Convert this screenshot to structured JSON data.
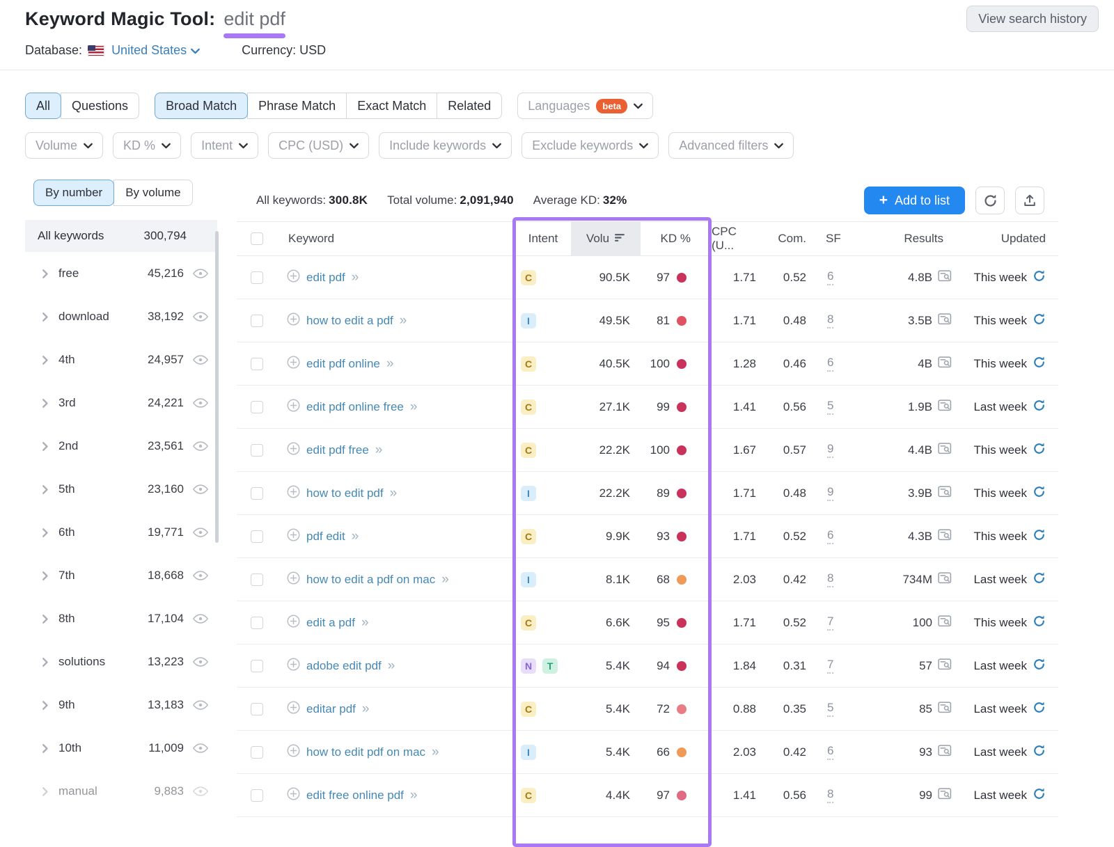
{
  "header": {
    "title": "Keyword Magic Tool:",
    "query": "edit pdf",
    "database_label": "Database:",
    "database_value": "United States",
    "currency_label": "Currency:",
    "currency_value": "USD",
    "view_history_label": "View search history"
  },
  "filters": {
    "tabs": [
      {
        "label": "All"
      },
      {
        "label": "Questions"
      }
    ],
    "match_tabs": [
      {
        "label": "Broad Match"
      },
      {
        "label": "Phrase Match"
      },
      {
        "label": "Exact Match"
      },
      {
        "label": "Related"
      }
    ],
    "languages": {
      "label": "Languages",
      "badge": "beta"
    },
    "dropdowns": [
      {
        "label": "Volume"
      },
      {
        "label": "KD %"
      },
      {
        "label": "Intent"
      },
      {
        "label": "CPC (USD)"
      },
      {
        "label": "Include keywords"
      },
      {
        "label": "Exclude keywords"
      },
      {
        "label": "Advanced filters"
      }
    ]
  },
  "sidebar": {
    "toggle": [
      {
        "label": "By number"
      },
      {
        "label": "By volume"
      }
    ],
    "all_keywords": {
      "label": "All keywords",
      "count": "300,794"
    },
    "groups": [
      {
        "name": "free",
        "count": "45,216"
      },
      {
        "name": "download",
        "count": "38,192"
      },
      {
        "name": "4th",
        "count": "24,957"
      },
      {
        "name": "3rd",
        "count": "24,221"
      },
      {
        "name": "2nd",
        "count": "23,561"
      },
      {
        "name": "5th",
        "count": "23,160"
      },
      {
        "name": "6th",
        "count": "19,771"
      },
      {
        "name": "7th",
        "count": "18,668"
      },
      {
        "name": "8th",
        "count": "17,104"
      },
      {
        "name": "solutions",
        "count": "13,223"
      },
      {
        "name": "9th",
        "count": "13,183"
      },
      {
        "name": "10th",
        "count": "11,009"
      },
      {
        "name": "manual",
        "count": "9,883"
      }
    ]
  },
  "toolbar": {
    "stats": [
      {
        "label": "All keywords:",
        "value": "300.8K"
      },
      {
        "label": "Total volume:",
        "value": "2,091,940"
      },
      {
        "label": "Average KD:",
        "value": "32%"
      }
    ],
    "add_to_list_label": "Add to list",
    "add_to_list_plus": "+"
  },
  "table": {
    "header": {
      "keyword": "Keyword",
      "intent": "Intent",
      "volume": "Volu",
      "kd": "KD %",
      "cpc": "CPC (U...",
      "com": "Com.",
      "sf": "SF",
      "results": "Results",
      "updated": "Updated"
    },
    "rows": [
      {
        "keyword": "edit pdf",
        "intents": [
          "C"
        ],
        "volume": "90.5K",
        "kd": "97",
        "kd_color": "#c9325a",
        "cpc": "1.71",
        "com": "0.52",
        "sf": "6",
        "results": "4.8B",
        "updated": "This week"
      },
      {
        "keyword": "how to edit a pdf",
        "intents": [
          "I"
        ],
        "volume": "49.5K",
        "kd": "81",
        "kd_color": "#e05263",
        "cpc": "1.71",
        "com": "0.48",
        "sf": "8",
        "results": "3.5B",
        "updated": "This week"
      },
      {
        "keyword": "edit pdf online",
        "intents": [
          "C"
        ],
        "volume": "40.5K",
        "kd": "100",
        "kd_color": "#c9325a",
        "cpc": "1.28",
        "com": "0.46",
        "sf": "6",
        "results": "4B",
        "updated": "This week"
      },
      {
        "keyword": "edit pdf online free",
        "intents": [
          "C"
        ],
        "volume": "27.1K",
        "kd": "99",
        "kd_color": "#c9325a",
        "cpc": "1.41",
        "com": "0.56",
        "sf": "5",
        "results": "1.9B",
        "updated": "Last week"
      },
      {
        "keyword": "edit pdf free",
        "intents": [
          "C"
        ],
        "volume": "22.2K",
        "kd": "100",
        "kd_color": "#c9325a",
        "cpc": "1.67",
        "com": "0.57",
        "sf": "9",
        "results": "4.4B",
        "updated": "This week"
      },
      {
        "keyword": "how to edit pdf",
        "intents": [
          "I"
        ],
        "volume": "22.2K",
        "kd": "89",
        "kd_color": "#c9325a",
        "cpc": "1.71",
        "com": "0.48",
        "sf": "9",
        "results": "3.9B",
        "updated": "This week"
      },
      {
        "keyword": "pdf edit",
        "intents": [
          "C"
        ],
        "volume": "9.9K",
        "kd": "93",
        "kd_color": "#c9325a",
        "cpc": "1.71",
        "com": "0.52",
        "sf": "6",
        "results": "4.3B",
        "updated": "This week"
      },
      {
        "keyword": "how to edit a pdf on mac",
        "intents": [
          "I"
        ],
        "volume": "8.1K",
        "kd": "68",
        "kd_color": "#f09a57",
        "cpc": "2.03",
        "com": "0.42",
        "sf": "8",
        "results": "734M",
        "updated": "Last week"
      },
      {
        "keyword": "edit a pdf",
        "intents": [
          "C"
        ],
        "volume": "6.6K",
        "kd": "95",
        "kd_color": "#c9325a",
        "cpc": "1.71",
        "com": "0.52",
        "sf": "7",
        "results": "100",
        "updated": "This week"
      },
      {
        "keyword": "adobe edit pdf",
        "intents": [
          "N",
          "T"
        ],
        "volume": "5.4K",
        "kd": "94",
        "kd_color": "#c9325a",
        "cpc": "1.84",
        "com": "0.31",
        "sf": "7",
        "results": "57",
        "updated": "Last week"
      },
      {
        "keyword": "editar pdf",
        "intents": [
          "C"
        ],
        "volume": "5.4K",
        "kd": "72",
        "kd_color": "#e87d85",
        "cpc": "0.88",
        "com": "0.35",
        "sf": "5",
        "results": "85",
        "updated": "Last week"
      },
      {
        "keyword": "how to edit pdf on mac",
        "intents": [
          "I"
        ],
        "volume": "5.4K",
        "kd": "66",
        "kd_color": "#f09a57",
        "cpc": "2.03",
        "com": "0.42",
        "sf": "6",
        "results": "93",
        "updated": "Last week"
      },
      {
        "keyword": "edit free online pdf",
        "intents": [
          "C"
        ],
        "volume": "4.4K",
        "kd": "97",
        "kd_color": "#e06983",
        "cpc": "1.41",
        "com": "0.56",
        "sf": "8",
        "results": "99",
        "updated": "Last week"
      }
    ]
  },
  "intent_styles": {
    "C": {
      "bg": "#faeec5",
      "fg": "#a9790f"
    },
    "I": {
      "bg": "#d9edfb",
      "fg": "#4089c0"
    },
    "N": {
      "bg": "#e8defa",
      "fg": "#8a63dd"
    },
    "T": {
      "bg": "#cff1e2",
      "fg": "#27a082"
    }
  },
  "annotations": {
    "highlight_color": "#a878f5"
  }
}
